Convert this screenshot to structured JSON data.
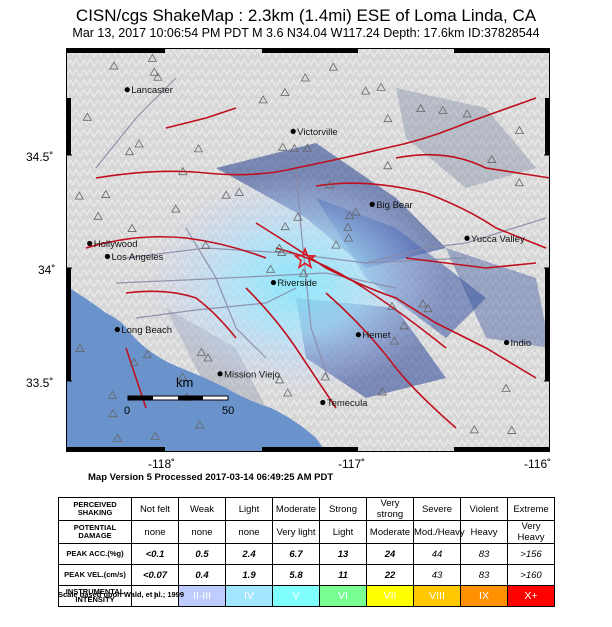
{
  "title": "CISN/cgs ShakeMap : 2.3km (1.4mi) ESE of Loma Linda, CA",
  "subtitle": "Mar 13, 2017 10:06:54 PM PDT   M 3.6   N34.04 W117.24   Depth: 17.6km   ID:37828544",
  "map": {
    "lat_range": [
      33.3,
      34.85
    ],
    "lon_range": [
      -118.45,
      -116.0
    ],
    "lat_labels": [
      "34.5˚",
      "34˚",
      "33.5˚"
    ],
    "lon_labels": [
      "-118˚",
      "-117˚",
      "-116˚"
    ],
    "epicenter": {
      "lat": 34.04,
      "lon": -117.24,
      "symbol": "red-star"
    },
    "cities": [
      {
        "name": "Lancaster",
        "lat": 34.69,
        "lon": -118.14
      },
      {
        "name": "Victorville",
        "lat": 34.53,
        "lon": -117.3
      },
      {
        "name": "Hollywood",
        "lat": 34.1,
        "lon": -118.33
      },
      {
        "name": "Big Bear",
        "lat": 34.25,
        "lon": -116.9
      },
      {
        "name": "Yucca Valley",
        "lat": 34.12,
        "lon": -116.42
      },
      {
        "name": "Los Angeles",
        "lat": 34.05,
        "lon": -118.24
      },
      {
        "name": "Riverside",
        "lat": 33.95,
        "lon": -117.4
      },
      {
        "name": "Long Beach",
        "lat": 33.77,
        "lon": -118.19
      },
      {
        "name": "Hemet",
        "lat": 33.75,
        "lon": -116.97
      },
      {
        "name": "Indio",
        "lat": 33.72,
        "lon": -116.22
      },
      {
        "name": "Mission Viejo",
        "lat": 33.6,
        "lon": -117.67
      },
      {
        "name": "Temecula",
        "lat": 33.49,
        "lon": -117.15
      }
    ],
    "scale_bar": {
      "unit": "km",
      "start": "0",
      "end": "50"
    },
    "colors": {
      "ocean": "#6a93cc",
      "land": "#d9d9d9",
      "fault": "#c0101e",
      "star": "#e0141e"
    }
  },
  "version_line": "Map Version 5 Processed 2017-03-14 06:49:25 AM PDT",
  "legend": {
    "rows": [
      {
        "header": "PERCEIVED SHAKING",
        "key": "shaking",
        "values": [
          "Not felt",
          "Weak",
          "Light",
          "Moderate",
          "Strong",
          "Very strong",
          "Severe",
          "Violent",
          "Extreme"
        ]
      },
      {
        "header": "POTENTIAL DAMAGE",
        "key": "damage",
        "values": [
          "none",
          "none",
          "none",
          "Very light",
          "Light",
          "Moderate",
          "Mod./Heavy",
          "Heavy",
          "Very Heavy"
        ]
      },
      {
        "header": "PEAK ACC.(%g)",
        "key": "acc",
        "values": [
          "<0.1",
          "0.5",
          "2.4",
          "6.7",
          "13",
          "24",
          "44",
          "83",
          ">156"
        ]
      },
      {
        "header": "PEAK VEL.(cm/s)",
        "key": "vel",
        "values": [
          "<0.07",
          "0.4",
          "1.9",
          "5.8",
          "11",
          "22",
          "43",
          "83",
          ">160"
        ]
      },
      {
        "header": "INSTRUMENTAL INTENSITY",
        "key": "mmi",
        "values": [
          "I",
          "II-III",
          "IV",
          "V",
          "VI",
          "VII",
          "VIII",
          "IX",
          "X+"
        ]
      }
    ],
    "mmi_colors": [
      "#ffffff",
      "#bfccff",
      "#a0e6ff",
      "#80ffff",
      "#7aff93",
      "#ffff00",
      "#ffc800",
      "#ff9100",
      "#ff0000"
    ],
    "scale_note": "Scale based upon Wald, et al.; 1999"
  }
}
